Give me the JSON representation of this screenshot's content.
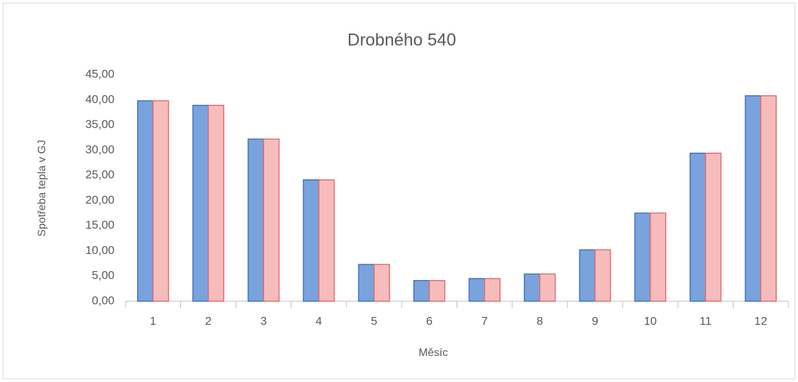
{
  "chart_data": {
    "type": "bar",
    "title": "Drobného 540",
    "x_label": "Měsíc",
    "y_label": "Spotřeba tepla v GJ",
    "categories": [
      "1",
      "2",
      "3",
      "4",
      "5",
      "6",
      "7",
      "8",
      "9",
      "10",
      "11",
      "12"
    ],
    "series": [
      {
        "color": "#7aa3dd",
        "edgecolor": "#3c70c2",
        "values": [
          39.8,
          38.9,
          32.2,
          24.1,
          7.3,
          4.1,
          4.5,
          5.4,
          10.2,
          17.5,
          29.4,
          40.8
        ]
      },
      {
        "color": "#f6bcbc",
        "edgecolor": "#e26a6a",
        "values": [
          39.8,
          38.9,
          32.2,
          24.1,
          7.3,
          4.1,
          4.5,
          5.4,
          10.2,
          17.5,
          29.4,
          40.8
        ]
      }
    ],
    "ylim": [
      0,
      45
    ],
    "yticks": [
      {
        "value": 0,
        "label": "0,00"
      },
      {
        "value": 5,
        "label": "5,00"
      },
      {
        "value": 10,
        "label": "10,00"
      },
      {
        "value": 15,
        "label": "15,00"
      },
      {
        "value": 20,
        "label": "20,00"
      },
      {
        "value": 25,
        "label": "25,00"
      },
      {
        "value": 30,
        "label": "30,00"
      },
      {
        "value": 35,
        "label": "35,00"
      },
      {
        "value": 40,
        "label": "40,00"
      },
      {
        "value": 45,
        "label": "45,00"
      }
    ],
    "grid": false
  }
}
